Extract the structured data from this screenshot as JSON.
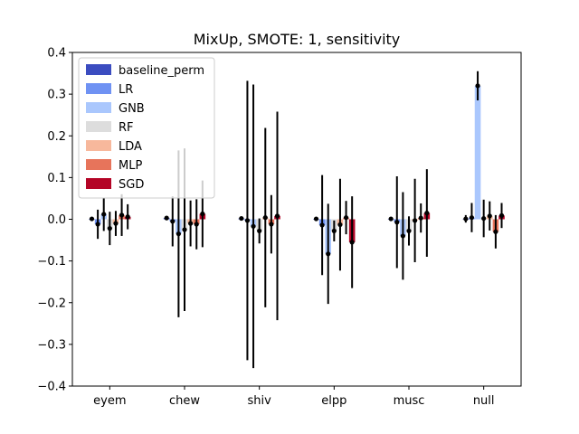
{
  "chart_data": {
    "type": "bar",
    "title": "MixUp, SMOTE: 1, sensitivity",
    "xlabel": "",
    "ylabel": "",
    "ylim": [
      -0.4,
      0.4
    ],
    "yticks": [
      -0.4,
      -0.3,
      -0.2,
      -0.1,
      0.0,
      0.1,
      0.2,
      0.3,
      0.4
    ],
    "ytick_labels": [
      "−0.4",
      "−0.3",
      "−0.2",
      "−0.1",
      "0.0",
      "0.1",
      "0.2",
      "0.3",
      "0.4"
    ],
    "categories": [
      "eyem",
      "chew",
      "shiv",
      "elpp",
      "musc",
      "null"
    ],
    "legend_position": "top-left",
    "grid": false,
    "error_bars": true,
    "series": [
      {
        "name": "baseline_perm",
        "color": "#3b4cc0",
        "values": [
          0.001,
          0.003,
          0.002,
          0.001,
          0.001,
          0.001
        ],
        "errors": [
          0.002,
          0.004,
          0.003,
          0.003,
          0.002,
          0.009
        ]
      },
      {
        "name": "LR",
        "color": "#6f92f3",
        "values": [
          -0.012,
          -0.005,
          -0.003,
          -0.014,
          -0.007,
          0.004
        ],
        "errors": [
          0.035,
          0.06,
          0.335,
          0.12,
          0.11,
          0.035
        ]
      },
      {
        "name": "GNB",
        "color": "#aac7fd",
        "values": [
          0.012,
          -0.035,
          -0.017,
          -0.083,
          -0.04,
          0.32
        ],
        "errors": [
          0.04,
          0.2,
          0.34,
          0.12,
          0.105,
          0.035
        ]
      },
      {
        "name": "RF",
        "color": "#dddddd",
        "values": [
          -0.022,
          -0.025,
          -0.028,
          -0.028,
          -0.028,
          0.002
        ],
        "errors": [
          0.04,
          0.195,
          0.03,
          0.025,
          0.035,
          0.045
        ]
      },
      {
        "name": "LDA",
        "color": "#f7b89c",
        "values": [
          -0.01,
          -0.01,
          0.004,
          -0.013,
          -0.003,
          0.008
        ],
        "errors": [
          0.03,
          0.055,
          0.215,
          0.11,
          0.1,
          0.035
        ]
      },
      {
        "name": "MLP",
        "color": "#e7745b",
        "values": [
          0.01,
          -0.012,
          -0.012,
          0.004,
          0.003,
          -0.03
        ],
        "errors": [
          0.05,
          0.06,
          0.07,
          0.04,
          0.035,
          0.04
        ]
      },
      {
        "name": "SGD",
        "color": "#b40426",
        "values": [
          0.006,
          0.013,
          0.008,
          -0.055,
          0.015,
          0.009
        ],
        "errors": [
          0.03,
          0.08,
          0.25,
          0.11,
          0.105,
          0.03
        ]
      }
    ]
  }
}
